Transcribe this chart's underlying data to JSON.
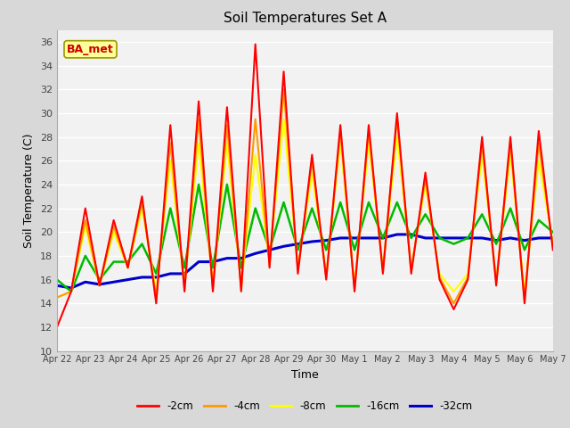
{
  "title": "Soil Temperatures Set A",
  "xlabel": "Time",
  "ylabel": "Soil Temperature (C)",
  "ylim": [
    10,
    37
  ],
  "yticks": [
    10,
    12,
    14,
    16,
    18,
    20,
    22,
    24,
    26,
    28,
    30,
    32,
    34,
    36
  ],
  "background_color": "#d8d8d8",
  "plot_bg": "#f2f2f2",
  "annotation_text": "BA_met",
  "annotation_bg": "#ffff99",
  "annotation_border": "#999900",
  "annotation_text_color": "#cc0000",
  "legend_entries": [
    "-2cm",
    "-4cm",
    "-8cm",
    "-16cm",
    "-32cm"
  ],
  "line_colors": [
    "#ff0000",
    "#ff9900",
    "#ffff00",
    "#00bb00",
    "#0000cc"
  ],
  "line_widths": [
    1.5,
    1.5,
    1.5,
    1.8,
    2.2
  ],
  "xtick_labels": [
    "Apr 22",
    "Apr 23",
    "Apr 24",
    "Apr 25",
    "Apr 26",
    "Apr 27",
    "Apr 28",
    "Apr 29",
    "Apr 30",
    "May 1",
    "May 2",
    "May 3",
    "May 4",
    "May 5",
    "May 6",
    "May 7"
  ],
  "n_days": 16,
  "depth_2cm": [
    12.0,
    15.0,
    22.0,
    15.5,
    21.0,
    17.0,
    23.0,
    14.0,
    29.0,
    15.0,
    31.0,
    15.0,
    30.5,
    15.0,
    35.8,
    17.0,
    33.5,
    16.5,
    26.5,
    16.0,
    29.0,
    15.0,
    29.0,
    16.5,
    30.0,
    16.5,
    25.0,
    16.0,
    13.5,
    16.0,
    28.0,
    15.5,
    28.0,
    14.0,
    28.5,
    18.5
  ],
  "depth_4cm": [
    14.5,
    15.0,
    21.0,
    15.5,
    20.5,
    17.0,
    22.5,
    14.5,
    27.5,
    15.2,
    29.5,
    15.2,
    29.0,
    15.2,
    29.5,
    17.2,
    32.0,
    16.8,
    26.0,
    16.2,
    28.5,
    15.2,
    28.5,
    16.8,
    29.5,
    16.8,
    24.5,
    16.2,
    14.0,
    16.2,
    27.5,
    15.8,
    27.5,
    14.2,
    27.5,
    18.8
  ],
  "depth_8cm": [
    14.5,
    15.0,
    20.5,
    15.5,
    20.0,
    17.0,
    22.0,
    15.0,
    26.0,
    15.5,
    27.5,
    15.5,
    27.5,
    15.5,
    26.5,
    17.5,
    29.5,
    17.0,
    25.0,
    16.5,
    27.5,
    15.5,
    27.5,
    17.0,
    28.0,
    17.0,
    24.0,
    16.5,
    15.0,
    16.5,
    26.5,
    16.0,
    26.5,
    15.0,
    26.0,
    19.0
  ],
  "depth_16cm": [
    16.0,
    15.0,
    18.0,
    16.0,
    17.5,
    17.5,
    19.0,
    16.5,
    22.0,
    17.0,
    24.0,
    17.0,
    24.0,
    17.0,
    22.0,
    18.5,
    22.5,
    18.5,
    22.0,
    18.5,
    22.5,
    18.5,
    22.5,
    19.5,
    22.5,
    19.5,
    21.5,
    19.5,
    19.0,
    19.5,
    21.5,
    19.0,
    22.0,
    18.5,
    21.0,
    20.0
  ],
  "depth_32cm": [
    15.5,
    15.3,
    15.8,
    15.6,
    15.8,
    16.0,
    16.2,
    16.2,
    16.5,
    16.5,
    17.5,
    17.5,
    17.8,
    17.8,
    18.2,
    18.5,
    18.8,
    19.0,
    19.2,
    19.3,
    19.5,
    19.5,
    19.5,
    19.5,
    19.8,
    19.8,
    19.5,
    19.5,
    19.5,
    19.5,
    19.5,
    19.3,
    19.5,
    19.3,
    19.5,
    19.5
  ]
}
